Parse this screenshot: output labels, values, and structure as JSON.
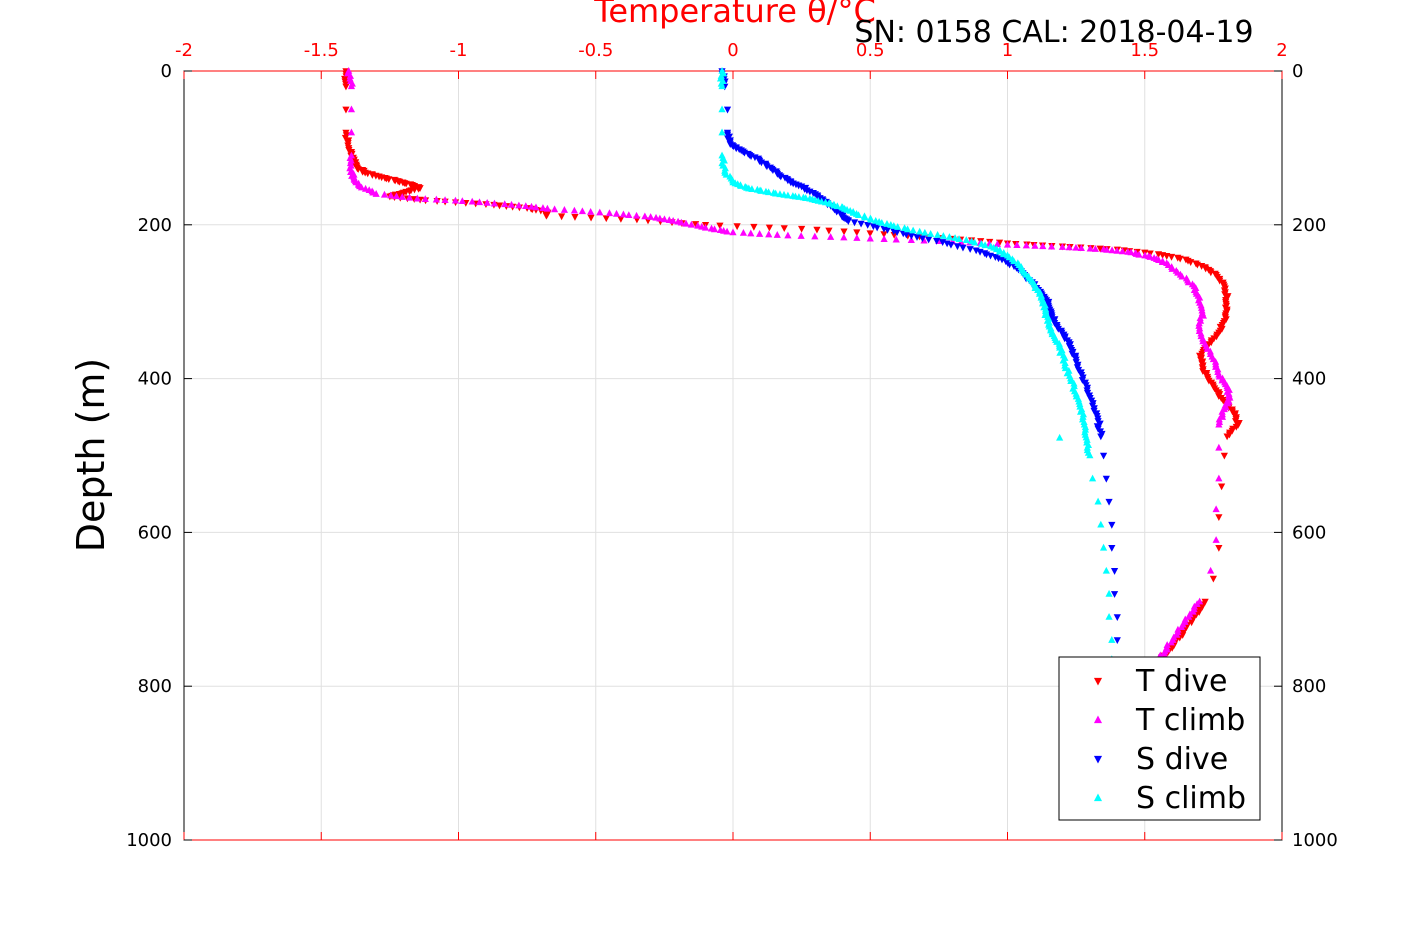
{
  "chart_data": {
    "type": "scatter",
    "title": "Temperature θ/°C",
    "annotation": "SN: 0158  CAL: 2018-04-19",
    "xlabel": "Temperature θ/°C",
    "ylabel": "Depth (m)",
    "xlim": [
      -2,
      2
    ],
    "ylim": [
      0,
      1000
    ],
    "y_reversed": true,
    "x_axis_position": "top",
    "x_ticks": [
      "-2",
      "-1.5",
      "-1",
      "-0.5",
      "0",
      "0.5",
      "1",
      "1.5",
      "2"
    ],
    "y_ticks": [
      "0",
      "200",
      "400",
      "600",
      "800",
      "1000"
    ],
    "grid": true,
    "legend_position": "bottom-right",
    "colors": {
      "axis_top": "#ff0000",
      "grid": "#e0e0e0",
      "title": "#ff0000"
    },
    "series": [
      {
        "name": "T dive",
        "color": "#ff0000",
        "marker": "triangle-down",
        "points": [
          [
            -1.41,
            0
          ],
          [
            -1.41,
            20
          ],
          [
            -1.41,
            50
          ],
          [
            -1.41,
            80
          ],
          [
            -1.4,
            100
          ],
          [
            -1.38,
            115
          ],
          [
            -1.37,
            125
          ],
          [
            -1.34,
            132
          ],
          [
            -1.28,
            138
          ],
          [
            -1.22,
            143
          ],
          [
            -1.17,
            148
          ],
          [
            -1.14,
            152
          ],
          [
            -1.2,
            158
          ],
          [
            -1.25,
            163
          ],
          [
            -1.12,
            168
          ],
          [
            -0.9,
            173
          ],
          [
            -0.75,
            178
          ],
          [
            -0.68,
            183
          ],
          [
            -0.68,
            188
          ],
          [
            -0.35,
            193
          ],
          [
            -0.1,
            200
          ],
          [
            0.25,
            205
          ],
          [
            0.55,
            212
          ],
          [
            0.8,
            218
          ],
          [
            1.0,
            224
          ],
          [
            1.2,
            228
          ],
          [
            1.4,
            232
          ],
          [
            1.55,
            238
          ],
          [
            1.65,
            245
          ],
          [
            1.72,
            255
          ],
          [
            1.76,
            265
          ],
          [
            1.79,
            280
          ],
          [
            1.8,
            295
          ],
          [
            1.8,
            310
          ],
          [
            1.79,
            325
          ],
          [
            1.77,
            340
          ],
          [
            1.73,
            355
          ],
          [
            1.7,
            370
          ],
          [
            1.71,
            385
          ],
          [
            1.73,
            400
          ],
          [
            1.76,
            415
          ],
          [
            1.79,
            430
          ],
          [
            1.83,
            445
          ],
          [
            1.84,
            460
          ],
          [
            1.8,
            475
          ],
          [
            1.79,
            500
          ],
          [
            1.78,
            540
          ],
          [
            1.77,
            580
          ],
          [
            1.77,
            620
          ],
          [
            1.75,
            660
          ],
          [
            1.72,
            690
          ],
          [
            1.68,
            710
          ],
          [
            1.64,
            730
          ],
          [
            1.6,
            750
          ],
          [
            1.56,
            765
          ]
        ]
      },
      {
        "name": "T climb",
        "color": "#ff00ff",
        "marker": "triangle-up",
        "points": [
          [
            -1.4,
            0
          ],
          [
            -1.39,
            20
          ],
          [
            -1.39,
            50
          ],
          [
            -1.39,
            80
          ],
          [
            -1.39,
            110
          ],
          [
            -1.39,
            130
          ],
          [
            -1.38,
            140
          ],
          [
            -1.36,
            150
          ],
          [
            -1.3,
            160
          ],
          [
            -1.15,
            166
          ],
          [
            -0.95,
            170
          ],
          [
            -0.78,
            175
          ],
          [
            -0.65,
            180
          ],
          [
            -0.45,
            185
          ],
          [
            -0.3,
            190
          ],
          [
            -0.2,
            196
          ],
          [
            -0.1,
            204
          ],
          [
            0.0,
            210
          ],
          [
            0.2,
            214
          ],
          [
            0.5,
            218
          ],
          [
            0.8,
            222
          ],
          [
            1.0,
            226
          ],
          [
            1.2,
            229
          ],
          [
            1.35,
            232
          ],
          [
            1.45,
            236
          ],
          [
            1.52,
            242
          ],
          [
            1.58,
            250
          ],
          [
            1.63,
            265
          ],
          [
            1.68,
            280
          ],
          [
            1.7,
            295
          ],
          [
            1.71,
            315
          ],
          [
            1.7,
            335
          ],
          [
            1.72,
            355
          ],
          [
            1.75,
            375
          ],
          [
            1.77,
            395
          ],
          [
            1.8,
            410
          ],
          [
            1.81,
            425
          ],
          [
            1.79,
            440
          ],
          [
            1.77,
            460
          ],
          [
            1.77,
            490
          ],
          [
            1.77,
            530
          ],
          [
            1.76,
            570
          ],
          [
            1.76,
            610
          ],
          [
            1.74,
            650
          ],
          [
            1.7,
            690
          ],
          [
            1.66,
            710
          ],
          [
            1.62,
            730
          ],
          [
            1.58,
            750
          ],
          [
            1.55,
            765
          ]
        ]
      },
      {
        "name": "S dive",
        "color": "#0000ff",
        "marker": "triangle-down",
        "points": [
          [
            -0.04,
            0
          ],
          [
            -0.03,
            20
          ],
          [
            -0.02,
            50
          ],
          [
            -0.02,
            80
          ],
          [
            -0.01,
            95
          ],
          [
            0.03,
            103
          ],
          [
            0.08,
            112
          ],
          [
            0.12,
            122
          ],
          [
            0.16,
            132
          ],
          [
            0.2,
            142
          ],
          [
            0.25,
            150
          ],
          [
            0.3,
            160
          ],
          [
            0.34,
            170
          ],
          [
            0.37,
            180
          ],
          [
            0.4,
            188
          ],
          [
            0.42,
            195
          ],
          [
            0.55,
            205
          ],
          [
            0.65,
            214
          ],
          [
            0.78,
            224
          ],
          [
            0.9,
            235
          ],
          [
            0.98,
            245
          ],
          [
            1.04,
            258
          ],
          [
            1.08,
            272
          ],
          [
            1.12,
            287
          ],
          [
            1.15,
            300
          ],
          [
            1.16,
            315
          ],
          [
            1.18,
            330
          ],
          [
            1.21,
            345
          ],
          [
            1.23,
            360
          ],
          [
            1.25,
            375
          ],
          [
            1.27,
            395
          ],
          [
            1.29,
            415
          ],
          [
            1.31,
            435
          ],
          [
            1.33,
            455
          ],
          [
            1.34,
            475
          ],
          [
            1.35,
            500
          ],
          [
            1.36,
            530
          ],
          [
            1.37,
            560
          ],
          [
            1.38,
            590
          ],
          [
            1.38,
            620
          ],
          [
            1.39,
            650
          ],
          [
            1.39,
            680
          ],
          [
            1.4,
            710
          ],
          [
            1.4,
            740
          ],
          [
            1.41,
            765
          ]
        ]
      },
      {
        "name": "S climb",
        "color": "#00ffff",
        "marker": "triangle-up",
        "points": [
          [
            -0.04,
            0
          ],
          [
            -0.04,
            20
          ],
          [
            -0.04,
            50
          ],
          [
            -0.04,
            80
          ],
          [
            -0.04,
            110
          ],
          [
            -0.03,
            130
          ],
          [
            0.0,
            145
          ],
          [
            0.05,
            152
          ],
          [
            0.12,
            157
          ],
          [
            0.2,
            162
          ],
          [
            0.28,
            166
          ],
          [
            0.35,
            172
          ],
          [
            0.4,
            178
          ],
          [
            0.45,
            186
          ],
          [
            0.52,
            195
          ],
          [
            0.6,
            203
          ],
          [
            0.72,
            212
          ],
          [
            0.85,
            220
          ],
          [
            0.95,
            230
          ],
          [
            1.0,
            240
          ],
          [
            1.05,
            255
          ],
          [
            1.08,
            270
          ],
          [
            1.11,
            285
          ],
          [
            1.13,
            300
          ],
          [
            1.14,
            315
          ],
          [
            1.15,
            330
          ],
          [
            1.17,
            345
          ],
          [
            1.19,
            360
          ],
          [
            1.21,
            380
          ],
          [
            1.23,
            400
          ],
          [
            1.25,
            420
          ],
          [
            1.27,
            440
          ],
          [
            1.28,
            460
          ],
          [
            1.29,
            480
          ],
          [
            1.3,
            500
          ],
          [
            1.31,
            530
          ],
          [
            1.33,
            560
          ],
          [
            1.34,
            590
          ],
          [
            1.35,
            620
          ],
          [
            1.36,
            650
          ],
          [
            1.37,
            680
          ],
          [
            1.37,
            710
          ],
          [
            1.38,
            740
          ],
          [
            1.38,
            765
          ],
          [
            1.19,
            477
          ]
        ]
      }
    ]
  }
}
